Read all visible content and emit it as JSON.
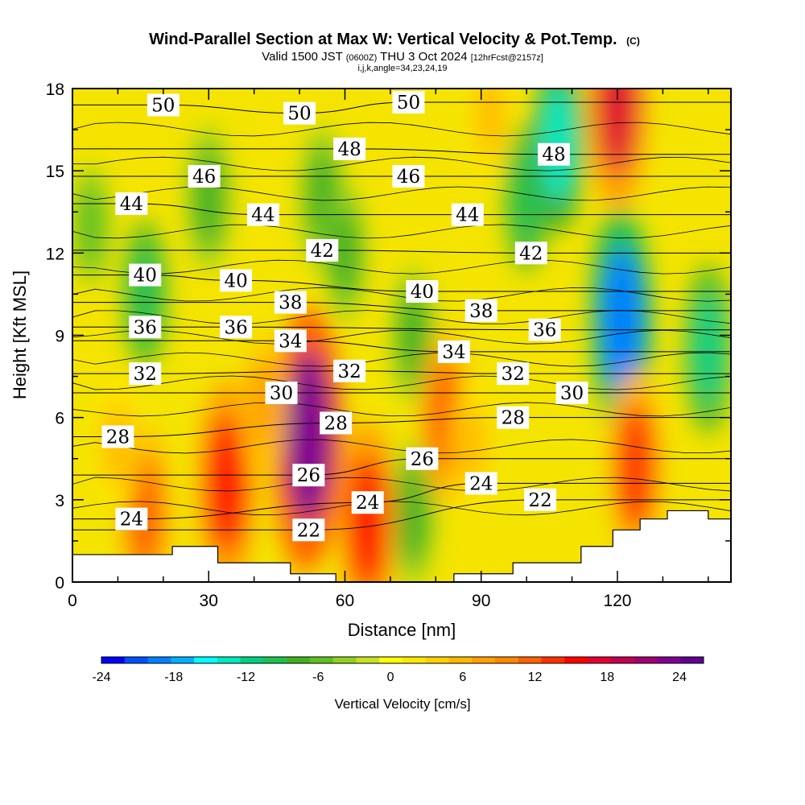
{
  "chart_data": {
    "type": "heatmap",
    "title": {
      "main": "Wind-Parallel Section at Max W: Vertical Velocity & Pot.Temp.",
      "copyright": "(C)",
      "valid_prefix": "Valid 1500 JST",
      "utc": "(0600Z)",
      "valid_date": "THU 3 Oct 2024",
      "forecast": "[12hrFcst@2157z]",
      "indices": "i,j,k,angle=34,23,24,19"
    },
    "xlabel": "Distance [nm]",
    "ylabel": "Height [Kft MSL]",
    "xlim": [
      0,
      145
    ],
    "ylim": [
      0,
      18
    ],
    "x_ticks": [
      0,
      30,
      60,
      90,
      120
    ],
    "y_ticks": [
      0,
      3,
      6,
      9,
      12,
      15,
      18
    ],
    "colorbar": {
      "label": "Vertical Velocity [cm/s]",
      "ticks": [
        -24,
        -18,
        -12,
        -6,
        0,
        6,
        12,
        18,
        24
      ],
      "levels": [
        -24,
        -22,
        -20,
        -18,
        -16,
        -14,
        -12,
        -10,
        -8,
        -6,
        -4,
        -2,
        0,
        2,
        4,
        6,
        8,
        10,
        12,
        14,
        16,
        18,
        20,
        22,
        24,
        26
      ],
      "colors": [
        "#0000ff",
        "#0050ff",
        "#0080ff",
        "#00b0ff",
        "#00ffff",
        "#00e8c0",
        "#00d080",
        "#20c050",
        "#40b020",
        "#60c020",
        "#90d020",
        "#c8e020",
        "#ffff00",
        "#ffe800",
        "#ffd000",
        "#ffb800",
        "#ffa000",
        "#ff8800",
        "#ff6000",
        "#ff3000",
        "#ff0000",
        "#e00030",
        "#c00050",
        "#a00070",
        "#800090",
        "#600090"
      ]
    },
    "vertical_velocity_cells": [
      {
        "x": 16,
        "y": 10.5,
        "w": -9
      },
      {
        "x": 4,
        "y": 13,
        "w": -5
      },
      {
        "x": 30,
        "y": 14,
        "w": -8
      },
      {
        "x": 55,
        "y": 14,
        "w": -8
      },
      {
        "x": 60,
        "y": 12,
        "w": -7
      },
      {
        "x": 75,
        "y": 9,
        "w": -7
      },
      {
        "x": 75,
        "y": 2.5,
        "w": -8
      },
      {
        "x": 100,
        "y": 14,
        "w": -9
      },
      {
        "x": 107,
        "y": 16,
        "w": -13
      },
      {
        "x": 120,
        "y": 10,
        "w": -15
      },
      {
        "x": 121,
        "y": 9.5,
        "w": -19
      },
      {
        "x": 140,
        "y": 8.5,
        "w": -12
      },
      {
        "x": 34,
        "y": 3.6,
        "w": 17
      },
      {
        "x": 51,
        "y": 4.5,
        "w": 20
      },
      {
        "x": 52,
        "y": 5.3,
        "w": 24
      },
      {
        "x": 65,
        "y": 2.2,
        "w": 16
      },
      {
        "x": 82,
        "y": 6,
        "w": 12
      },
      {
        "x": 124,
        "y": 4.2,
        "w": 15
      },
      {
        "x": 120,
        "y": 17.5,
        "w": 18
      },
      {
        "x": 16,
        "y": 2.5,
        "w": 12
      },
      {
        "x": 10,
        "y": 5,
        "w": 7
      },
      {
        "x": 42,
        "y": 6.5,
        "w": 8
      },
      {
        "x": 92,
        "y": 17,
        "w": 6
      },
      {
        "x": 88,
        "y": 5,
        "w": 6
      }
    ],
    "potential_temperature_labels": [
      {
        "x": 20,
        "y": 17.4,
        "value": "50"
      },
      {
        "x": 50,
        "y": 17.1,
        "value": "50"
      },
      {
        "x": 74,
        "y": 17.5,
        "value": "50"
      },
      {
        "x": 61,
        "y": 15.8,
        "value": "48"
      },
      {
        "x": 106,
        "y": 15.6,
        "value": "48"
      },
      {
        "x": 29,
        "y": 14.8,
        "value": "46"
      },
      {
        "x": 74,
        "y": 14.8,
        "value": "46"
      },
      {
        "x": 13,
        "y": 13.8,
        "value": "44"
      },
      {
        "x": 42,
        "y": 13.4,
        "value": "44"
      },
      {
        "x": 87,
        "y": 13.4,
        "value": "44"
      },
      {
        "x": 55,
        "y": 12.1,
        "value": "42"
      },
      {
        "x": 101,
        "y": 12.0,
        "value": "42"
      },
      {
        "x": 16,
        "y": 11.2,
        "value": "40"
      },
      {
        "x": 36,
        "y": 11.0,
        "value": "40"
      },
      {
        "x": 77,
        "y": 10.6,
        "value": "40"
      },
      {
        "x": 48,
        "y": 10.2,
        "value": "38"
      },
      {
        "x": 90,
        "y": 9.9,
        "value": "38"
      },
      {
        "x": 16,
        "y": 9.3,
        "value": "36"
      },
      {
        "x": 36,
        "y": 9.3,
        "value": "36"
      },
      {
        "x": 104,
        "y": 9.2,
        "value": "36"
      },
      {
        "x": 48,
        "y": 8.8,
        "value": "34"
      },
      {
        "x": 84,
        "y": 8.4,
        "value": "34"
      },
      {
        "x": 16,
        "y": 7.6,
        "value": "32"
      },
      {
        "x": 61,
        "y": 7.7,
        "value": "32"
      },
      {
        "x": 97,
        "y": 7.6,
        "value": "32"
      },
      {
        "x": 46,
        "y": 6.9,
        "value": "30"
      },
      {
        "x": 110,
        "y": 6.9,
        "value": "30"
      },
      {
        "x": 10,
        "y": 5.3,
        "value": "28"
      },
      {
        "x": 58,
        "y": 5.8,
        "value": "28"
      },
      {
        "x": 97,
        "y": 6.0,
        "value": "28"
      },
      {
        "x": 77,
        "y": 4.5,
        "value": "26"
      },
      {
        "x": 52,
        "y": 3.9,
        "value": "26"
      },
      {
        "x": 90,
        "y": 3.6,
        "value": "24"
      },
      {
        "x": 65,
        "y": 2.9,
        "value": "24"
      },
      {
        "x": 13,
        "y": 2.3,
        "value": "24"
      },
      {
        "x": 103,
        "y": 3.0,
        "value": "22"
      },
      {
        "x": 52,
        "y": 1.9,
        "value": "22"
      }
    ],
    "terrain_top_kft": [
      {
        "x": 0,
        "y": 1.0
      },
      {
        "x": 22,
        "y": 1.0
      },
      {
        "x": 22,
        "y": 1.3
      },
      {
        "x": 32,
        "y": 1.3
      },
      {
        "x": 32,
        "y": 0.7
      },
      {
        "x": 48,
        "y": 0.7
      },
      {
        "x": 48,
        "y": 0.3
      },
      {
        "x": 58,
        "y": 0.3
      },
      {
        "x": 58,
        "y": 0.0
      },
      {
        "x": 84,
        "y": 0.0
      },
      {
        "x": 84,
        "y": 0.3
      },
      {
        "x": 97,
        "y": 0.3
      },
      {
        "x": 97,
        "y": 0.7
      },
      {
        "x": 112,
        "y": 0.7
      },
      {
        "x": 112,
        "y": 1.3
      },
      {
        "x": 119,
        "y": 1.3
      },
      {
        "x": 119,
        "y": 1.9
      },
      {
        "x": 125,
        "y": 1.9
      },
      {
        "x": 125,
        "y": 2.3
      },
      {
        "x": 131,
        "y": 2.3
      },
      {
        "x": 131,
        "y": 2.6
      },
      {
        "x": 140,
        "y": 2.6
      },
      {
        "x": 140,
        "y": 2.3
      },
      {
        "x": 145,
        "y": 2.3
      }
    ],
    "grid": false
  }
}
